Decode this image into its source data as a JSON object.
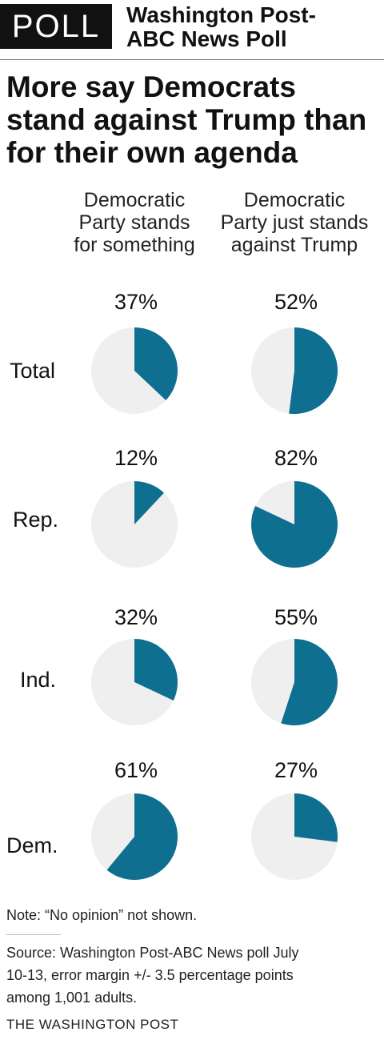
{
  "header": {
    "badge": "POLL",
    "title_line1": "Washington Post-",
    "title_line2": "ABC News Poll"
  },
  "headline_lines": [
    "More say Democrats",
    "stand against Trump than",
    "for their own agenda"
  ],
  "colors": {
    "accent": "#0f6f91",
    "remainder": "#efefef"
  },
  "chart_data": {
    "type": "pie",
    "columns": [
      [
        "Democratic",
        "Party stands",
        "for something"
      ],
      [
        "Democratic",
        "Party just stands",
        "against Trump"
      ]
    ],
    "rows": [
      {
        "label": "Total",
        "values": [
          37,
          52
        ],
        "value_labels": [
          "37%",
          "52%"
        ]
      },
      {
        "label": "Rep.",
        "values": [
          12,
          82
        ],
        "value_labels": [
          "12%",
          "82%"
        ]
      },
      {
        "label": "Ind.",
        "values": [
          32,
          55
        ],
        "value_labels": [
          "32%",
          "55%"
        ]
      },
      {
        "label": "Dem.",
        "values": [
          61,
          27
        ],
        "value_labels": [
          "61%",
          "27%"
        ]
      }
    ],
    "unit": "percent"
  },
  "note": "Note: “No opinion” not shown.",
  "source_lines": [
    "Source: Washington Post-ABC News poll July",
    "10-13, error margin +/- 3.5 percentage points",
    "among 1,001 adults."
  ],
  "credit": "THE WASHINGTON POST"
}
